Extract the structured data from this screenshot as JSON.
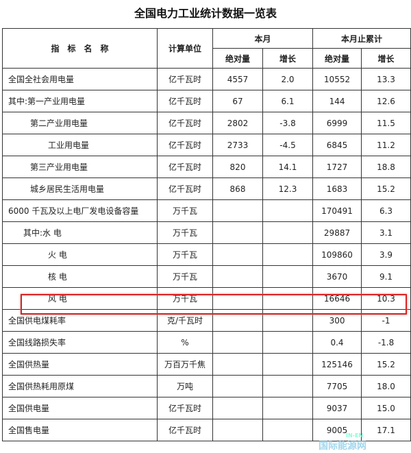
{
  "title": "全国电力工业统计数据一览表",
  "header": {
    "name": "指　标　名　称",
    "unit": "计算单位",
    "month": "本月",
    "cumulative": "本月止累计",
    "abs": "绝对量",
    "growth": "增长"
  },
  "rows": [
    {
      "name": "全国全社会用电量",
      "indent": 0,
      "unit": "亿千瓦时",
      "m_abs": "4557",
      "m_g": "2.0",
      "c_abs": "10552",
      "c_g": "13.3"
    },
    {
      "name": "其中:第一产业用电量",
      "indent": 0,
      "unit": "亿千瓦时",
      "m_abs": "67",
      "m_g": "6.1",
      "c_abs": "144",
      "c_g": "12.6"
    },
    {
      "name": "第二产业用电量",
      "indent": 1,
      "unit": "亿千瓦时",
      "m_abs": "2802",
      "m_g": "-3.8",
      "c_abs": "6999",
      "c_g": "11.5"
    },
    {
      "name": "工业用电量",
      "indent": 2,
      "unit": "亿千瓦时",
      "m_abs": "2733",
      "m_g": "-4.5",
      "c_abs": "6845",
      "c_g": "11.2"
    },
    {
      "name": "第三产业用电量",
      "indent": 1,
      "unit": "亿千瓦时",
      "m_abs": "820",
      "m_g": "14.1",
      "c_abs": "1727",
      "c_g": "18.8"
    },
    {
      "name": "城乡居民生活用电量",
      "indent": 1,
      "unit": "亿千瓦时",
      "m_abs": "868",
      "m_g": "12.3",
      "c_abs": "1683",
      "c_g": "15.2"
    },
    {
      "name": "6000 千瓦及以上电厂发电设备容量",
      "indent": 0,
      "unit": "万千瓦",
      "m_abs": "",
      "m_g": "",
      "c_abs": "170491",
      "c_g": "6.3"
    },
    {
      "name": "其中:水 电",
      "indent": 3,
      "unit": "万千瓦",
      "m_abs": "",
      "m_g": "",
      "c_abs": "29887",
      "c_g": "3.1"
    },
    {
      "name": "火 电",
      "indent": 2,
      "unit": "万千瓦",
      "m_abs": "",
      "m_g": "",
      "c_abs": "109860",
      "c_g": "3.9"
    },
    {
      "name": "核 电",
      "indent": 2,
      "unit": "万千瓦",
      "m_abs": "",
      "m_g": "",
      "c_abs": "3670",
      "c_g": "9.1"
    },
    {
      "name": "风 电",
      "indent": 2,
      "unit": "万千瓦",
      "m_abs": "",
      "m_g": "",
      "c_abs": "16646",
      "c_g": "10.3",
      "highlighted": true
    },
    {
      "name": "全国供电煤耗率",
      "indent": 0,
      "unit": "克/千瓦时",
      "m_abs": "",
      "m_g": "",
      "c_abs": "300",
      "c_g": "-1"
    },
    {
      "name": "全国线路损失率",
      "indent": 0,
      "unit": "%",
      "m_abs": "",
      "m_g": "",
      "c_abs": "0.4",
      "c_g": "-1.8"
    },
    {
      "name": "全国供热量",
      "indent": 0,
      "unit": "万百万千焦",
      "m_abs": "",
      "m_g": "",
      "c_abs": "125146",
      "c_g": "15.2"
    },
    {
      "name": "全国供热耗用原煤",
      "indent": 0,
      "unit": "万吨",
      "m_abs": "",
      "m_g": "",
      "c_abs": "7705",
      "c_g": "18.0"
    },
    {
      "name": "全国供电量",
      "indent": 0,
      "unit": "亿千瓦时",
      "m_abs": "",
      "m_g": "",
      "c_abs": "9037",
      "c_g": "15.0"
    },
    {
      "name": "全国售电量",
      "indent": 0,
      "unit": "亿千瓦时",
      "m_abs": "",
      "m_g": "",
      "c_abs": "9005",
      "c_g": "17.1"
    }
  ],
  "highlight_color": "#e02020",
  "watermark": {
    "text": "国际能源网",
    "sub": "IN-EN"
  }
}
